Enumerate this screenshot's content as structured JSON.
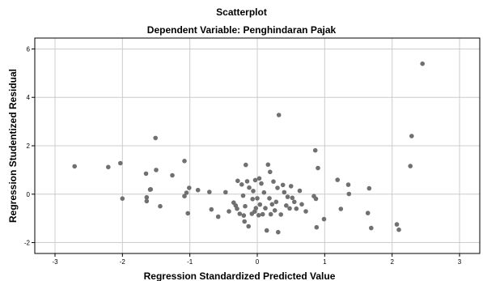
{
  "chart_data": {
    "type": "scatter",
    "title": "Scatterplot",
    "subtitle": "Dependent Variable: Penghindaran Pajak",
    "xlabel": "Regression Standardized Predicted Value",
    "ylabel": "Regression Studentized Residual",
    "xlim": [
      -3.3,
      3.3
    ],
    "ylim": [
      -2.45,
      6.45
    ],
    "xticks": [
      "-3",
      "-2",
      "-1",
      "0",
      "1",
      "2",
      "3"
    ],
    "yticks": [
      "-2",
      "0",
      "2",
      "4",
      "6"
    ],
    "grid": true,
    "point_color": "#707070",
    "points": [
      [
        -2.71,
        1.15
      ],
      [
        -2.21,
        1.12
      ],
      [
        -2.03,
        1.28
      ],
      [
        -2.0,
        -0.18
      ],
      [
        -1.65,
        0.85
      ],
      [
        -1.64,
        -0.13
      ],
      [
        -1.64,
        -0.29
      ],
      [
        -1.59,
        0.19
      ],
      [
        -1.58,
        0.2
      ],
      [
        -1.51,
        2.32
      ],
      [
        -1.5,
        1.0
      ],
      [
        -1.44,
        -0.5
      ],
      [
        -1.26,
        0.78
      ],
      [
        -1.08,
        1.37
      ],
      [
        -1.08,
        -0.08
      ],
      [
        -1.05,
        0.06
      ],
      [
        -1.03,
        -0.79
      ],
      [
        -1.01,
        0.26
      ],
      [
        -0.88,
        0.17
      ],
      [
        -0.71,
        0.09
      ],
      [
        -0.68,
        -0.63
      ],
      [
        -0.58,
        -0.93
      ],
      [
        -0.47,
        0.08
      ],
      [
        -0.42,
        -0.71
      ],
      [
        -0.35,
        -0.35
      ],
      [
        -0.32,
        -0.47
      ],
      [
        -0.3,
        -0.6
      ],
      [
        -0.29,
        0.55
      ],
      [
        -0.26,
        -0.81
      ],
      [
        -0.23,
        0.4
      ],
      [
        -0.21,
        -0.06
      ],
      [
        -0.2,
        -0.88
      ],
      [
        -0.19,
        -1.13
      ],
      [
        -0.18,
        -0.5
      ],
      [
        -0.17,
        1.21
      ],
      [
        -0.15,
        0.53
      ],
      [
        -0.13,
        -1.33
      ],
      [
        -0.12,
        0.27
      ],
      [
        -0.08,
        -0.81
      ],
      [
        -0.07,
        -0.2
      ],
      [
        -0.06,
        0.13
      ],
      [
        -0.04,
        -0.72
      ],
      [
        -0.03,
        0.58
      ],
      [
        -0.02,
        -0.58
      ],
      [
        0.0,
        -0.17
      ],
      [
        0.02,
        -0.87
      ],
      [
        0.03,
        0.65
      ],
      [
        0.04,
        -0.43
      ],
      [
        0.06,
        0.44
      ],
      [
        0.08,
        -0.83
      ],
      [
        0.1,
        0.07
      ],
      [
        0.12,
        -0.58
      ],
      [
        0.14,
        -1.5
      ],
      [
        0.16,
        1.22
      ],
      [
        0.18,
        -0.17
      ],
      [
        0.19,
        0.92
      ],
      [
        0.2,
        -0.83
      ],
      [
        0.22,
        -0.42
      ],
      [
        0.24,
        0.52
      ],
      [
        0.26,
        -0.67
      ],
      [
        0.28,
        -0.32
      ],
      [
        0.3,
        0.26
      ],
      [
        0.31,
        -1.57
      ],
      [
        0.32,
        3.27
      ],
      [
        0.35,
        -0.84
      ],
      [
        0.38,
        0.38
      ],
      [
        0.4,
        0.08
      ],
      [
        0.43,
        -0.47
      ],
      [
        0.45,
        -0.11
      ],
      [
        0.48,
        -0.59
      ],
      [
        0.5,
        0.33
      ],
      [
        0.52,
        -0.15
      ],
      [
        0.55,
        -0.32
      ],
      [
        0.58,
        -0.6
      ],
      [
        0.63,
        0.14
      ],
      [
        0.66,
        -0.42
      ],
      [
        0.72,
        -0.71
      ],
      [
        0.84,
        -0.08
      ],
      [
        0.86,
        1.81
      ],
      [
        0.87,
        -0.19
      ],
      [
        0.88,
        -1.37
      ],
      [
        0.9,
        1.08
      ],
      [
        0.99,
        -1.03
      ],
      [
        1.19,
        0.59
      ],
      [
        1.24,
        -0.61
      ],
      [
        1.35,
        0.39
      ],
      [
        1.36,
        0.01
      ],
      [
        1.64,
        -0.78
      ],
      [
        1.66,
        0.24
      ],
      [
        1.69,
        -1.4
      ],
      [
        2.07,
        -1.25
      ],
      [
        2.1,
        -1.47
      ],
      [
        2.27,
        1.16
      ],
      [
        2.29,
        2.4
      ],
      [
        2.45,
        5.39
      ]
    ]
  }
}
